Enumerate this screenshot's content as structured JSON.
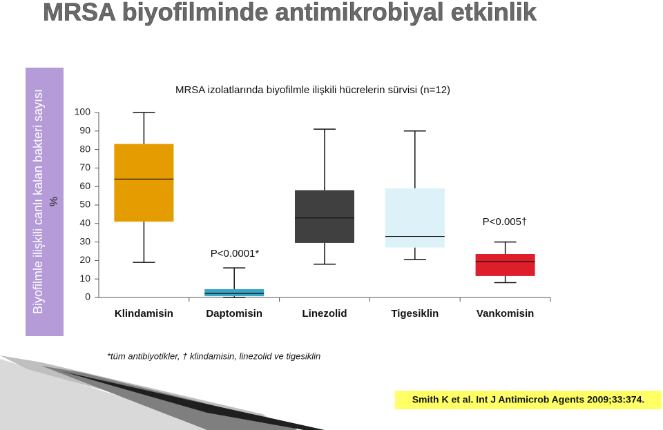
{
  "chart_data": {
    "type": "box",
    "slide_title": "MRSA biyofilminde antimikrobiyal etkinlik",
    "title": "MRSA izolatlarında biyofilmle ilişkili hücrelerin sürvisi (n=12)",
    "ylabel": "Biyofilmle ilişkili canlı kalan bakteri sayısı",
    "yunit": "%",
    "categories": [
      "Klindamisin",
      "Daptomisin",
      "Linezolid",
      "Tigesiklin",
      "Vankomisin"
    ],
    "boxes": [
      {
        "color": "#e59c00",
        "min": 19,
        "q1": 41,
        "median": 64,
        "q3": 83,
        "max": 100
      },
      {
        "color": "#3aa6c4",
        "min": 0,
        "q1": 0.7,
        "median": 2.2,
        "q3": 4.5,
        "max": 16
      },
      {
        "color": "#404040",
        "min": 18,
        "q1": 29.5,
        "median": 43,
        "q3": 58,
        "max": 91
      },
      {
        "color": "#ddf2f8",
        "min": 20.5,
        "q1": 27,
        "median": 33,
        "q3": 59,
        "max": 90
      },
      {
        "color": "#dc1f2a",
        "min": 8,
        "q1": 11.6,
        "median": 19.4,
        "q3": 23.5,
        "max": 30
      }
    ],
    "ylim": [
      0,
      100
    ],
    "yticks": [
      0,
      10,
      20,
      30,
      40,
      50,
      60,
      70,
      80,
      90,
      100
    ],
    "annotations": [
      "P<0.0001*",
      "P<0.005†"
    ],
    "footnote": "*tüm antibiyotikler, † klindamisin, linezolid ve tigesiklin",
    "citation": "Smith K et al. Int J Antimicrob Agents 2009;33:374."
  }
}
